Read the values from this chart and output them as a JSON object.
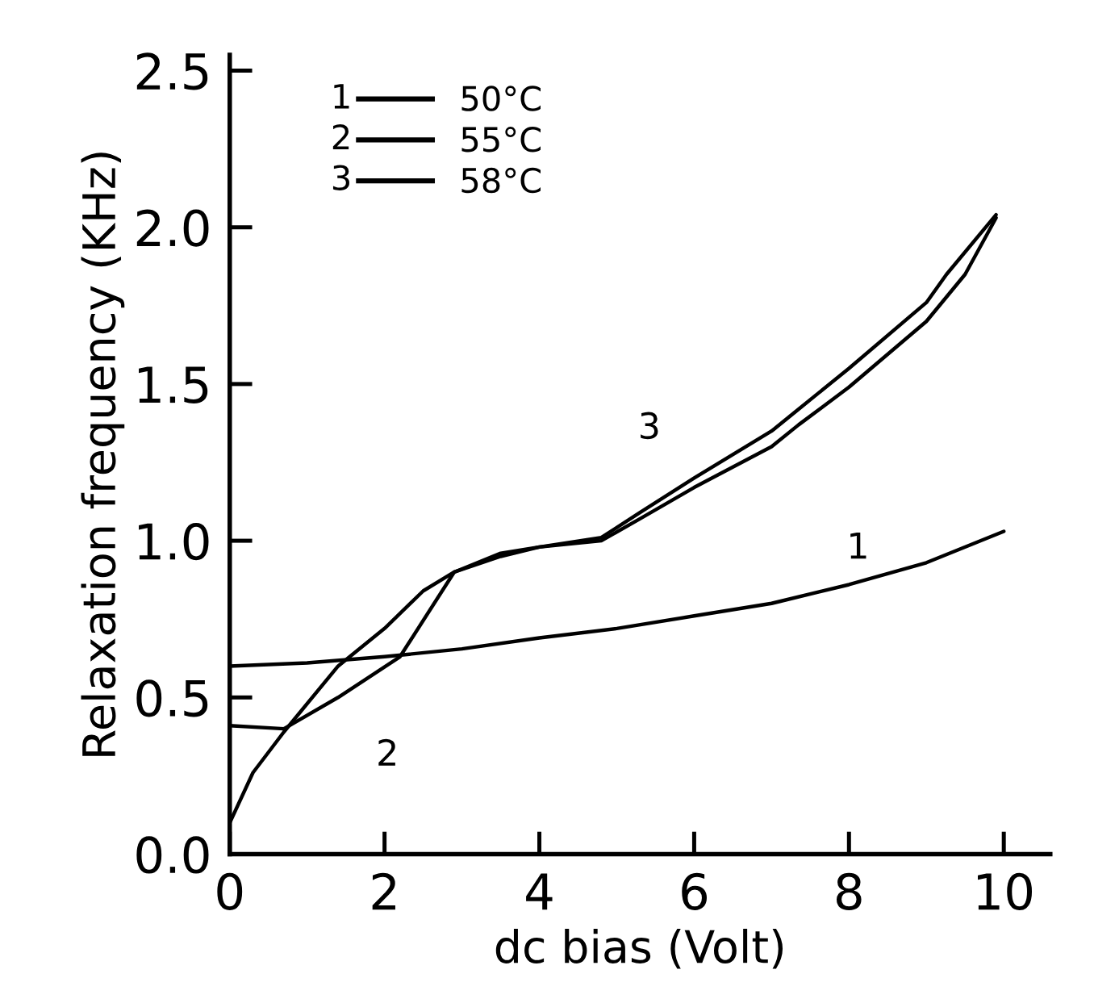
{
  "chart_data": {
    "type": "line",
    "xlabel": "dc bias (Volt)",
    "ylabel": "Relaxation frequency (KHz)",
    "xlim": [
      0,
      10.6
    ],
    "ylim": [
      0,
      2.55
    ],
    "xticks": [
      0,
      2,
      4,
      6,
      8,
      10
    ],
    "yticks": [
      {
        "value": 0,
        "label": "0.0"
      },
      0.5,
      {
        "value": 1,
        "label": "1.0"
      },
      1.5,
      {
        "value": 2,
        "label": "2.0"
      },
      2.5
    ],
    "grid": false,
    "legend": "top left",
    "marker": "none",
    "line_style": "solid",
    "series": [
      {
        "name": "50°C",
        "color": "#000000",
        "x": [
          0,
          1,
          2,
          3,
          4,
          5,
          6,
          7,
          8,
          9,
          10
        ],
        "values": [
          0.6,
          0.61,
          0.63,
          0.655,
          0.69,
          0.72,
          0.76,
          0.8,
          0.86,
          0.93,
          1.03
        ]
      },
      {
        "name": "55°C",
        "color": "#000000",
        "x": [
          0,
          0.7,
          1.4,
          2.2,
          2.9,
          3.5,
          4,
          4.8,
          5.3,
          6,
          7,
          7.35,
          8,
          9,
          9.5,
          9.9
        ],
        "values": [
          0.41,
          0.4,
          0.5,
          0.63,
          0.9,
          0.95,
          0.98,
          1.0,
          1.07,
          1.17,
          1.3,
          1.37,
          1.49,
          1.7,
          1.85,
          2.03
        ]
      },
      {
        "name": "58°C",
        "color": "#000000",
        "x": [
          0,
          0.3,
          0.7,
          1.4,
          2,
          2.5,
          2.9,
          3.5,
          4,
          4.8,
          5.3,
          6,
          7,
          7.35,
          8,
          9,
          9.26,
          9.9
        ],
        "values": [
          0.1,
          0.26,
          0.39,
          0.6,
          0.72,
          0.84,
          0.9,
          0.96,
          0.98,
          1.01,
          1.09,
          1.2,
          1.35,
          1.42,
          1.55,
          1.76,
          1.85,
          2.04
        ]
      }
    ],
    "annotations": [
      {
        "text": "1",
        "x": 8,
        "y": 0.86
      },
      {
        "text": "2",
        "x": 1.4,
        "y": 0.5
      },
      {
        "text": "3",
        "x": 6,
        "y": 1.2
      },
      "1",
      "2",
      "3"
    ]
  }
}
